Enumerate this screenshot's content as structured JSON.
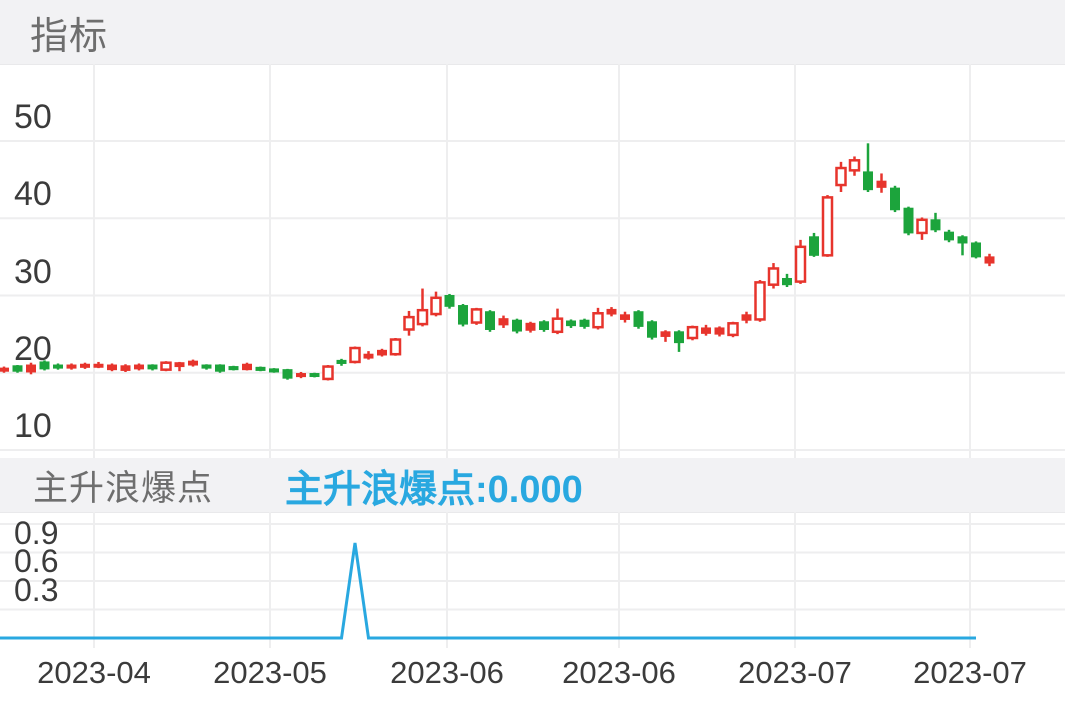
{
  "header": {
    "title": "指标"
  },
  "sub_header": {
    "title": "主升浪爆点",
    "value_label": "主升浪爆点:0.000",
    "current_value": "0.000"
  },
  "colors": {
    "up_red": "#e7342c",
    "down_green": "#1ca43c",
    "signal_line": "#29a8e0",
    "grid": "#eeeeef",
    "axis_text": "#3b3b3b",
    "header_bg": "#f2f2f4",
    "header_text": "#6e6e6e",
    "background": "#ffffff"
  },
  "chart_data": [
    {
      "type": "candlestick",
      "title": "指标",
      "ylabel": "",
      "y_ticks": [
        50,
        40,
        30,
        20,
        10
      ],
      "ylim": [
        9.5,
        60
      ],
      "grid": true,
      "x_tick_labels": [
        "2023-04",
        "2023-05",
        "2023-06",
        "2023-06",
        "2023-07",
        "2023-07"
      ],
      "up_color_meaning": "red = up day (hollow body), green = down day (solid body)",
      "candles_ohlc": [
        [
          20.2,
          20.8,
          20.0,
          20.6
        ],
        [
          20.9,
          21.0,
          20.0,
          20.2
        ],
        [
          20.1,
          21.3,
          19.8,
          21.0
        ],
        [
          21.4,
          21.6,
          20.3,
          20.5
        ],
        [
          21.0,
          21.2,
          20.4,
          20.6
        ],
        [
          20.6,
          21.2,
          20.4,
          21.0
        ],
        [
          20.7,
          21.3,
          20.5,
          21.1
        ],
        [
          20.8,
          21.4,
          20.6,
          21.1
        ],
        [
          20.4,
          21.2,
          20.2,
          21.0
        ],
        [
          20.3,
          21.1,
          20.1,
          20.9
        ],
        [
          20.5,
          21.2,
          20.3,
          21.0
        ],
        [
          21.0,
          21.1,
          20.3,
          20.5
        ],
        [
          20.4,
          21.5,
          20.2,
          21.3
        ],
        [
          20.8,
          21.4,
          20.2,
          21.3
        ],
        [
          21.0,
          21.7,
          20.8,
          21.5
        ],
        [
          21.0,
          21.1,
          20.4,
          20.6
        ],
        [
          21.0,
          21.1,
          20.0,
          20.2
        ],
        [
          20.8,
          20.9,
          20.3,
          20.4
        ],
        [
          20.4,
          21.3,
          20.3,
          21.1
        ],
        [
          20.7,
          20.8,
          20.2,
          20.3
        ],
        [
          20.5,
          20.6,
          20.0,
          20.1
        ],
        [
          20.4,
          20.5,
          19.1,
          19.3
        ],
        [
          19.5,
          20.1,
          19.3,
          19.9
        ],
        [
          19.9,
          20.0,
          19.4,
          19.7
        ],
        [
          19.2,
          21.0,
          19.0,
          20.8
        ],
        [
          21.6,
          21.8,
          20.9,
          21.2
        ],
        [
          21.4,
          23.4,
          21.2,
          23.2
        ],
        [
          21.9,
          22.8,
          21.7,
          22.4
        ],
        [
          22.3,
          23.1,
          22.1,
          22.9
        ],
        [
          22.4,
          24.5,
          22.2,
          24.3
        ],
        [
          25.6,
          28.0,
          24.8,
          27.2
        ],
        [
          26.3,
          30.9,
          26.0,
          28.1
        ],
        [
          27.6,
          30.5,
          27.3,
          29.7
        ],
        [
          30.0,
          30.2,
          28.3,
          28.6
        ],
        [
          28.7,
          28.9,
          26.0,
          26.3
        ],
        [
          26.5,
          28.4,
          26.2,
          28.2
        ],
        [
          27.9,
          28.1,
          25.3,
          25.6
        ],
        [
          26.2,
          27.4,
          25.8,
          27.0
        ],
        [
          26.8,
          27.0,
          25.1,
          25.4
        ],
        [
          25.5,
          26.6,
          25.2,
          26.4
        ],
        [
          26.6,
          26.8,
          25.3,
          25.6
        ],
        [
          25.3,
          28.3,
          25.0,
          27.0
        ],
        [
          26.7,
          26.9,
          25.8,
          26.1
        ],
        [
          26.8,
          27.0,
          25.7,
          26.0
        ],
        [
          25.9,
          28.4,
          25.6,
          27.7
        ],
        [
          27.6,
          28.5,
          27.3,
          28.2
        ],
        [
          26.9,
          27.9,
          26.5,
          27.5
        ],
        [
          27.9,
          28.1,
          25.7,
          26.0
        ],
        [
          26.6,
          26.8,
          24.3,
          24.6
        ],
        [
          24.7,
          25.5,
          24.0,
          25.3
        ],
        [
          25.3,
          25.5,
          22.7,
          23.9
        ],
        [
          24.5,
          26.1,
          24.2,
          25.9
        ],
        [
          25.1,
          26.2,
          24.8,
          25.8
        ],
        [
          25.0,
          26.0,
          24.7,
          25.8
        ],
        [
          24.9,
          26.6,
          24.6,
          26.4
        ],
        [
          26.8,
          27.9,
          26.4,
          27.5
        ],
        [
          26.9,
          32.0,
          26.6,
          31.7
        ],
        [
          31.4,
          34.2,
          30.9,
          33.5
        ],
        [
          32.2,
          32.8,
          31.1,
          31.4
        ],
        [
          31.8,
          37.2,
          31.5,
          36.3
        ],
        [
          37.6,
          38.1,
          35.0,
          35.2
        ],
        [
          35.2,
          43.0,
          35.0,
          42.7
        ],
        [
          44.3,
          47.3,
          43.4,
          46.5
        ],
        [
          46.2,
          48.0,
          45.5,
          47.5
        ],
        [
          46.0,
          49.7,
          43.4,
          43.7
        ],
        [
          44.0,
          45.8,
          43.3,
          44.8
        ],
        [
          43.9,
          44.2,
          40.8,
          41.1
        ],
        [
          41.3,
          41.5,
          37.8,
          38.1
        ],
        [
          38.1,
          40.1,
          37.2,
          39.8
        ],
        [
          39.8,
          40.7,
          38.2,
          38.5
        ],
        [
          38.2,
          38.5,
          36.9,
          37.2
        ],
        [
          37.6,
          37.8,
          35.2,
          36.8
        ],
        [
          36.8,
          37.0,
          34.8,
          35.0
        ],
        [
          34.2,
          35.4,
          33.8,
          35.0
        ]
      ]
    },
    {
      "type": "line",
      "title": "主升浪爆点",
      "legend_value": "主升浪爆点:0.000",
      "y_ticks": [
        0.9,
        0.6,
        0.3
      ],
      "ylim": [
        0,
        1.3
      ],
      "grid": true,
      "description": "signal flat at 0 with single spike to 1.0 at index 26 (mid-May breakout day)",
      "spike_index": 26,
      "spike_value": 1.0,
      "baseline_value": 0.0,
      "last_point_index": 72
    }
  ]
}
